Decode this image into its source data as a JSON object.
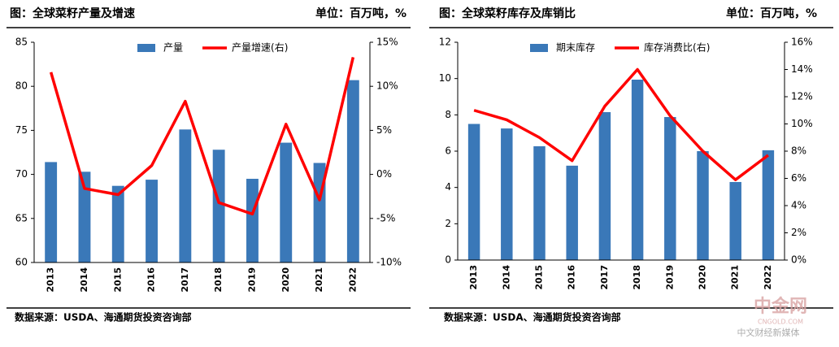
{
  "chart_data": [
    {
      "type": "bar",
      "title": "图：全球菜籽产量及增速",
      "unit": "单位：百万吨，%",
      "source": "数据来源：USDA、海通期货投资咨询部",
      "categories": [
        "2013",
        "2014",
        "2015",
        "2016",
        "2017",
        "2018",
        "2019",
        "2020",
        "2021",
        "2022"
      ],
      "series": [
        {
          "name": "产量",
          "color": "#3a78b8",
          "values": [
            71.4,
            70.3,
            68.7,
            69.4,
            75.1,
            72.8,
            69.5,
            73.6,
            71.3,
            80.7
          ]
        },
        {
          "name": "产量增速(右)",
          "color": "#ff0000",
          "axis": "y2",
          "values": [
            11.6,
            -1.6,
            -2.3,
            1.0,
            8.3,
            -3.2,
            -4.5,
            5.7,
            -2.9,
            13.3
          ]
        }
      ],
      "ylim": [
        60,
        85
      ],
      "yticks": [
        60,
        65,
        70,
        75,
        80,
        85
      ],
      "y2lim": [
        -10,
        15
      ],
      "y2ticks": [
        {
          "value": -10,
          "label": "-10%"
        },
        {
          "value": -5,
          "label": "-5%"
        },
        {
          "value": 0,
          "label": "0%"
        },
        {
          "value": 5,
          "label": "5%"
        },
        {
          "value": 10,
          "label": "10%"
        },
        {
          "value": 15,
          "label": "15%"
        }
      ],
      "legend": "top"
    },
    {
      "type": "bar",
      "title": "图：全球菜籽库存及库销比",
      "unit": "单位：百万吨，%",
      "source": "数据来源：USDA、海通期货投资咨询部",
      "categories": [
        "2013",
        "2014",
        "2015",
        "2016",
        "2017",
        "2018",
        "2019",
        "2020",
        "2021",
        "2022"
      ],
      "series": [
        {
          "name": "期末库存",
          "color": "#3a78b8",
          "values": [
            7.5,
            7.25,
            6.27,
            5.2,
            8.15,
            9.94,
            7.88,
            6.0,
            4.3,
            6.05
          ]
        },
        {
          "name": "库存消费比(右)",
          "color": "#ff0000",
          "axis": "y2",
          "values": [
            11.0,
            10.3,
            9.0,
            7.3,
            11.3,
            14.0,
            10.6,
            8.0,
            5.9,
            7.7
          ]
        }
      ],
      "ylim": [
        0,
        12
      ],
      "yticks": [
        0,
        2,
        4,
        6,
        8,
        10,
        12
      ],
      "y2lim": [
        0,
        16
      ],
      "y2ticks": [
        {
          "value": 0,
          "label": "0%"
        },
        {
          "value": 2,
          "label": "2%"
        },
        {
          "value": 4,
          "label": "4%"
        },
        {
          "value": 6,
          "label": "6%"
        },
        {
          "value": 8,
          "label": "8%"
        },
        {
          "value": 10,
          "label": "10%"
        },
        {
          "value": 12,
          "label": "12%"
        },
        {
          "value": 14,
          "label": "14%"
        },
        {
          "value": 16,
          "label": "16%"
        }
      ],
      "legend": "top"
    }
  ],
  "watermark": {
    "logo": "中金网",
    "url": "CNGOLD.COM",
    "tagline": "中文财经新媒体"
  }
}
